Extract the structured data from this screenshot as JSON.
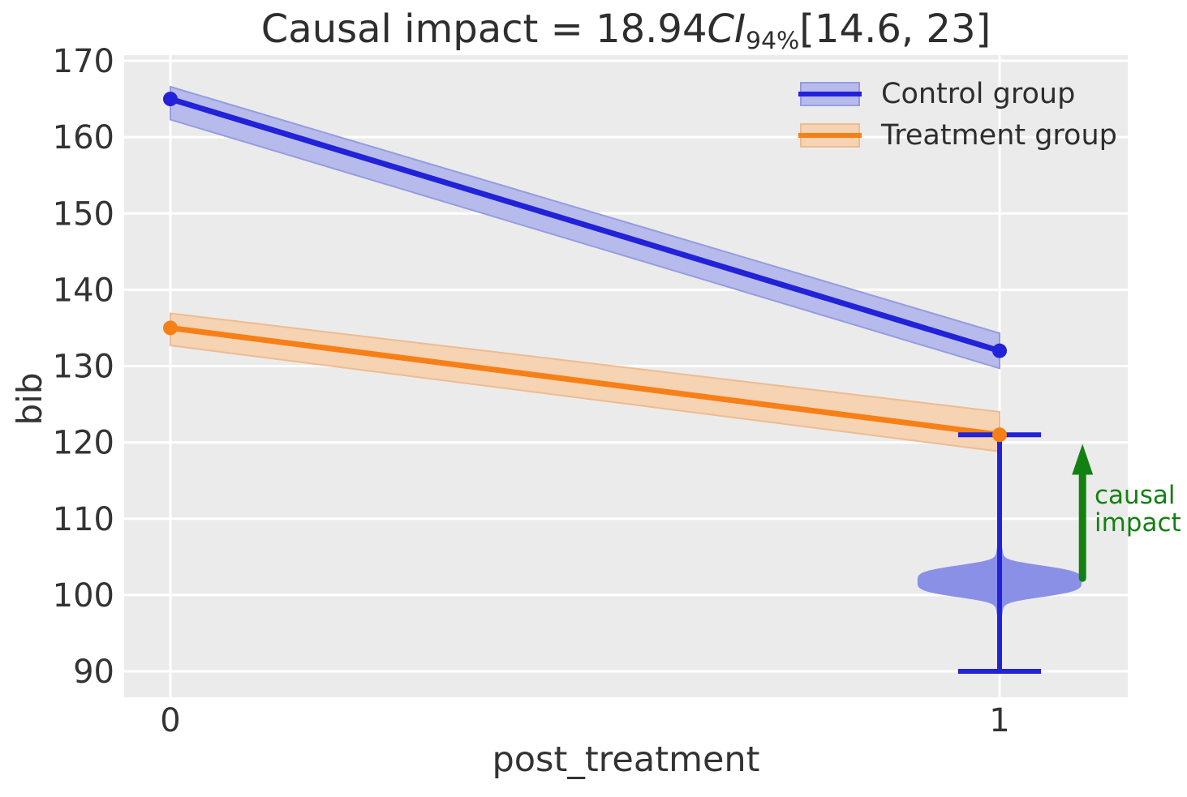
{
  "title": {
    "prefix": "Causal impact = 18.94",
    "ci_symbol": "CI",
    "ci_subscript": "94%",
    "interval": "[14.6, 23]"
  },
  "axes": {
    "xlabel": "post_treatment",
    "ylabel": "bib",
    "x_tick_values": [
      0,
      1
    ],
    "x_tick_labels": [
      "0",
      "1"
    ],
    "y_tick_values": [
      90,
      100,
      110,
      120,
      130,
      140,
      150,
      160,
      170
    ],
    "xlim": [
      -0.056,
      1.155
    ],
    "ylim": [
      86.6,
      170.6
    ],
    "background_color": "#ebebeb",
    "grid_color": "#ffffff",
    "tick_label_color": "#333333"
  },
  "legend": {
    "position": "upper right",
    "items": [
      {
        "label": "Control group",
        "line_color": "#2222d8",
        "band_color": "#b7bbeb",
        "band_border": "#959ce2"
      },
      {
        "label": "Treatment group",
        "line_color": "#f68017",
        "band_color": "#f5d3b3",
        "band_border": "#edbc90"
      }
    ]
  },
  "chart_data": {
    "type": "line",
    "title": "Causal impact = 18.94 CI 94% [14.6, 23]",
    "xlabel": "post_treatment",
    "ylabel": "bib",
    "x": [
      0,
      1
    ],
    "series": [
      {
        "name": "Control group",
        "values": [
          165,
          132
        ],
        "color": "#2222d8",
        "ci_lower": [
          162.3,
          129.7
        ],
        "ci_upper": [
          166.6,
          134.3
        ]
      },
      {
        "name": "Treatment group",
        "values": [
          135,
          121
        ],
        "color": "#f68017",
        "ci_lower": [
          132.7,
          118.8
        ],
        "ci_upper": [
          136.9,
          124.0
        ]
      }
    ],
    "counterfactual_violin": {
      "x": 1,
      "mode": 101.8,
      "whisker_low": 90,
      "whisker_high": 121,
      "cap_half_width_x": 0.05,
      "max_half_width_x": 0.099,
      "fill_color": "#8a90e6",
      "line_color": "#2222d8"
    },
    "annotation": {
      "lines": [
        "causal",
        "impact"
      ],
      "color": "#138013",
      "x": 1.1,
      "arrow_from_y": 102.2,
      "arrow_to_y": 119.8
    },
    "causal_impact": {
      "value": 18.94,
      "ci_level": "94%",
      "ci_lower": 14.6,
      "ci_upper": 23
    },
    "grid": true,
    "legend_position": "upper right"
  }
}
